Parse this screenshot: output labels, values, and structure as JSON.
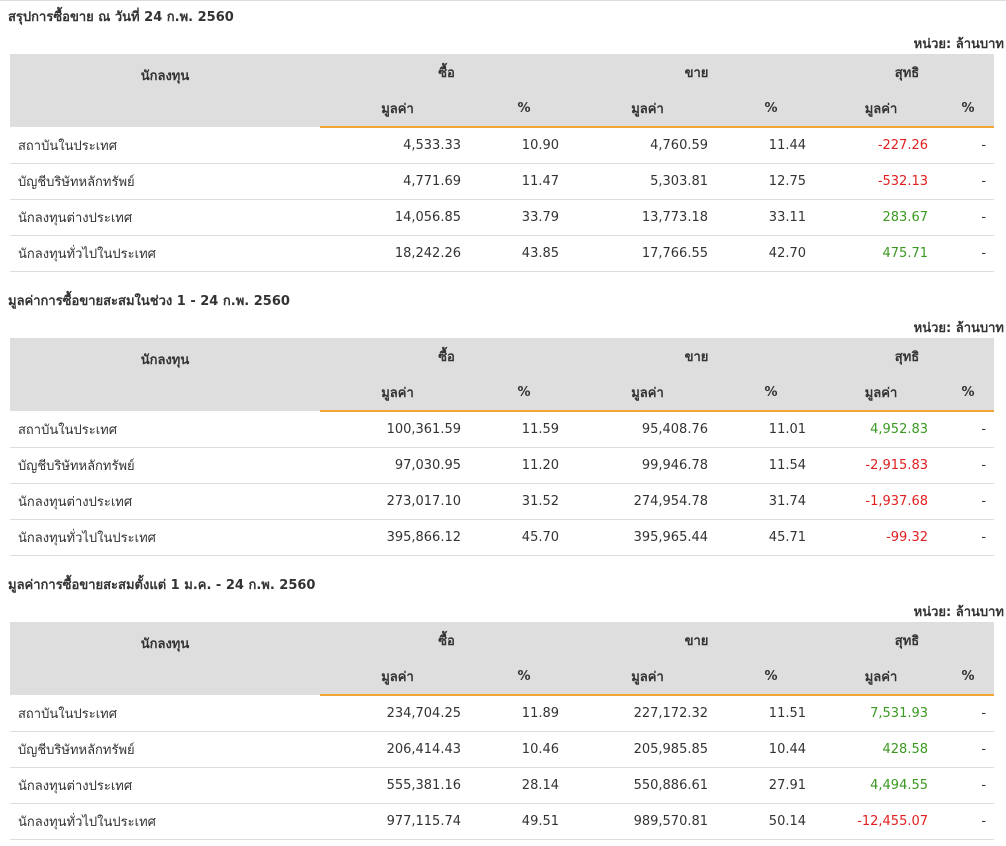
{
  "sections": [
    {
      "title": "สรุปการซื้อขาย ณ วันที่ 24 ก.พ. 2560",
      "unit": "หน่วย: ล้านบาท",
      "header": [
        "นักลงทุน",
        "ซื้อ",
        "ขาย",
        "สุทธิ"
      ],
      "subheader": [
        "มูลค่า",
        "%",
        "มูลค่า",
        "%",
        "มูลค่า",
        "%"
      ],
      "rows": [
        [
          "สถาบันในประเทศ",
          "4,533.33",
          "10.90",
          "4,760.59",
          "11.44",
          "-227.26",
          "-"
        ],
        [
          "บัญชีบริษัทหลักทรัพย์",
          "4,771.69",
          "11.47",
          "5,303.81",
          "12.75",
          "-532.13",
          "-"
        ],
        [
          "นักลงทุนต่างประเทศ",
          "14,056.85",
          "33.79",
          "13,773.18",
          "33.11",
          "283.67",
          "-"
        ],
        [
          "นักลงทุนทั่วไปในประเทศ",
          "18,242.26",
          "43.85",
          "17,766.55",
          "42.70",
          "475.71",
          "-"
        ]
      ]
    },
    {
      "title": "มูลค่าการซื้อขายสะสมในช่วง 1 - 24 ก.พ. 2560",
      "unit": "หน่วย: ล้านบาท",
      "header": [
        "นักลงทุน",
        "ซื้อ",
        "ขาย",
        "สุทธิ"
      ],
      "subheader": [
        "มูลค่า",
        "%",
        "มูลค่า",
        "%",
        "มูลค่า",
        "%"
      ],
      "rows": [
        [
          "สถาบันในประเทศ",
          "100,361.59",
          "11.59",
          "95,408.76",
          "11.01",
          "4,952.83",
          "-"
        ],
        [
          "บัญชีบริษัทหลักทรัพย์",
          "97,030.95",
          "11.20",
          "99,946.78",
          "11.54",
          "-2,915.83",
          "-"
        ],
        [
          "นักลงทุนต่างประเทศ",
          "273,017.10",
          "31.52",
          "274,954.78",
          "31.74",
          "-1,937.68",
          "-"
        ],
        [
          "นักลงทุนทั่วไปในประเทศ",
          "395,866.12",
          "45.70",
          "395,965.44",
          "45.71",
          "-99.32",
          "-"
        ]
      ]
    },
    {
      "title": "มูลค่าการซื้อขายสะสมตั้งแต่ 1 ม.ค. - 24 ก.พ. 2560",
      "unit": "หน่วย: ล้านบาท",
      "header": [
        "นักลงทุน",
        "ซื้อ",
        "ขาย",
        "สุทธิ"
      ],
      "subheader": [
        "มูลค่า",
        "%",
        "มูลค่า",
        "%",
        "มูลค่า",
        "%"
      ],
      "rows": [
        [
          "สถาบันในประเทศ",
          "234,704.25",
          "11.89",
          "227,172.32",
          "11.51",
          "7,531.93",
          "-"
        ],
        [
          "บัญชีบริษัทหลักทรัพย์",
          "206,414.43",
          "10.46",
          "205,985.85",
          "10.44",
          "428.58",
          "-"
        ],
        [
          "นักลงทุนต่างประเทศ",
          "555,381.16",
          "28.14",
          "550,886.61",
          "27.91",
          "4,494.55",
          "-"
        ],
        [
          "นักลงทุนทั่วไปในประเทศ",
          "977,115.74",
          "49.51",
          "989,570.81",
          "50.14",
          "-12,455.07",
          "-"
        ]
      ]
    }
  ]
}
